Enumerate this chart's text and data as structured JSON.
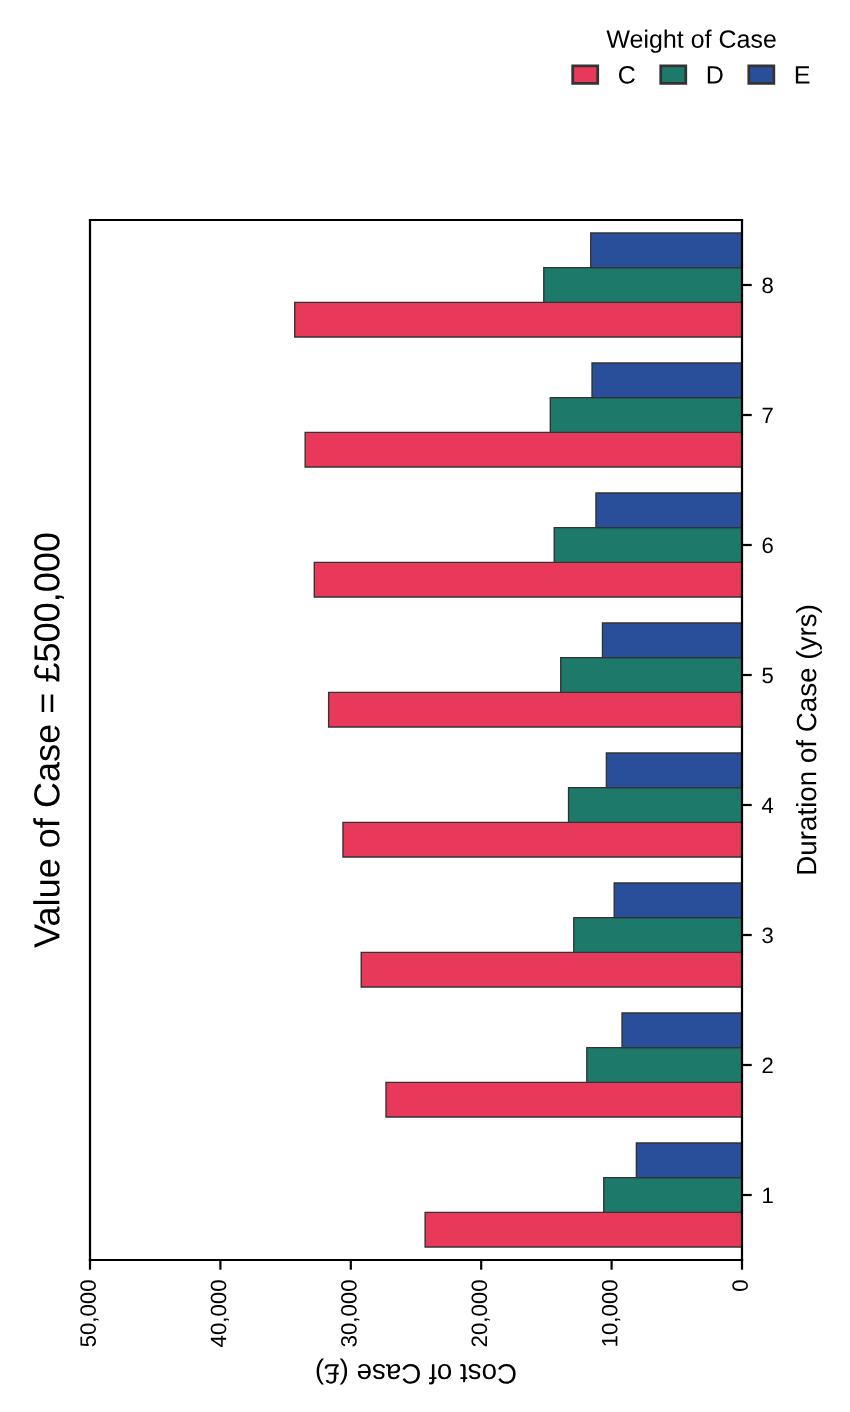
{
  "chart_data": {
    "type": "bar",
    "orientation": "horizontal",
    "title": "Value of Case = £500,000",
    "xlabel": "Cost of Case (£)",
    "ylabel": "Duration of Case (yrs)",
    "legend_title": "Weight of Case",
    "legend": "top right",
    "categories": [
      "8",
      "7",
      "6",
      "5",
      "4",
      "3",
      "2",
      "1"
    ],
    "series": [
      {
        "name": "C",
        "color": "#e8395a",
        "values": [
          34300,
          33500,
          32800,
          31700,
          30600,
          29200,
          27300,
          24300
        ]
      },
      {
        "name": "D",
        "color": "#1d7a6a",
        "values": [
          15200,
          14700,
          14400,
          13900,
          13300,
          12900,
          11900,
          10600
        ]
      },
      {
        "name": "E",
        "color": "#2a4f9a",
        "values": [
          11600,
          11500,
          11200,
          10700,
          10400,
          9800,
          9200,
          8100
        ]
      }
    ],
    "xlim": [
      50000,
      0
    ],
    "xticks": [
      {
        "value": 50000,
        "label": "50,000"
      },
      {
        "value": 40000,
        "label": "40,000"
      },
      {
        "value": 30000,
        "label": "30,000"
      },
      {
        "value": 20000,
        "label": "20,000"
      },
      {
        "value": 10000,
        "label": "10,000"
      },
      0
    ],
    "grid": false
  }
}
